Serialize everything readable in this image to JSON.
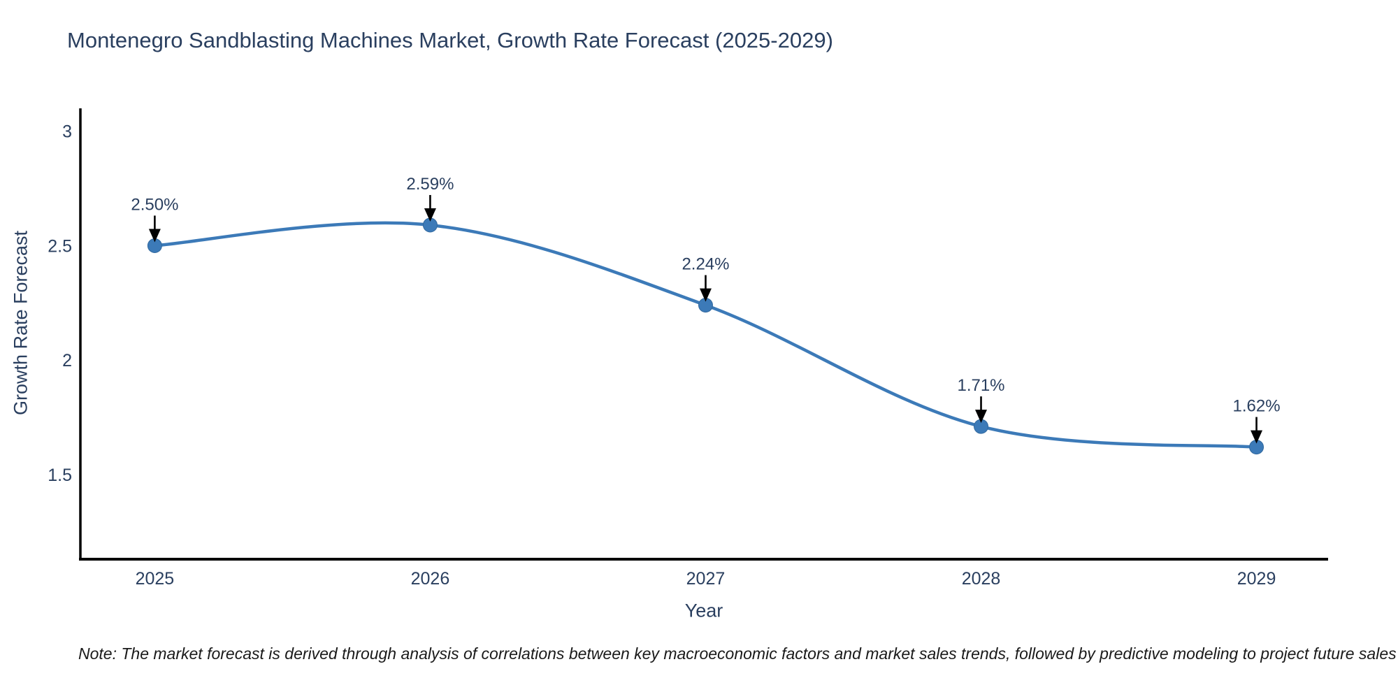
{
  "title": "Montenegro Sandblasting Machines Market, Growth Rate Forecast (2025-2029)",
  "note": "Note: The market forecast is derived through analysis of correlations between key macroeconomic factors and market sales trends, followed by predictive modeling to project future sales",
  "chart_data": {
    "type": "line",
    "line_shape": "spline",
    "title": "Montenegro Sandblasting Machines Market, Growth Rate Forecast (2025-2029)",
    "xlabel": "Year",
    "ylabel": "Growth Rate Forecast",
    "x": [
      2025,
      2026,
      2027,
      2028,
      2029
    ],
    "y": [
      2.5,
      2.59,
      2.24,
      1.71,
      1.62
    ],
    "point_labels": [
      "2.50%",
      "2.59%",
      "2.24%",
      "1.71%",
      "1.62%"
    ],
    "x_tick_labels": [
      "2025",
      "2026",
      "2027",
      "2028",
      "2029"
    ],
    "y_ticks": [
      1.5,
      2,
      2.5,
      3
    ],
    "y_tick_labels": [
      "1.5",
      "2",
      "2.5",
      "3"
    ],
    "xlim": [
      2024.73,
      2029.26
    ],
    "ylim": [
      1.13,
      3.1
    ],
    "grid": false,
    "legend": false,
    "line_color": "#3c7ab8",
    "marker_color": "#3c7ab8",
    "marker_edge_color": "#31689e",
    "axis_color": "#000000",
    "arrow_color": "#000000",
    "text_color": "#2a3f5f"
  }
}
